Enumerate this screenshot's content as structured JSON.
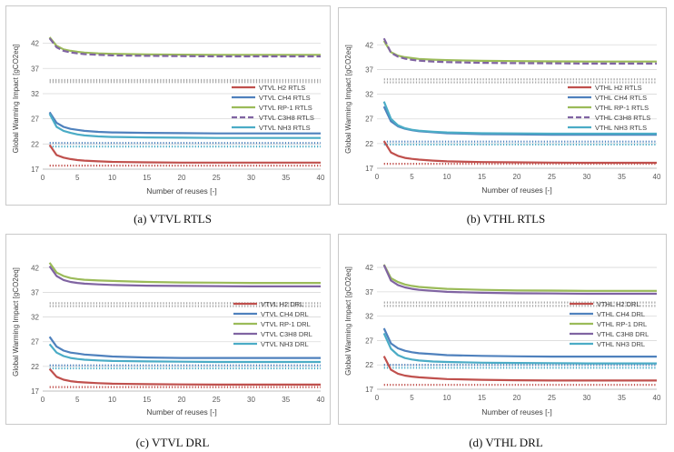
{
  "series_colors": {
    "H2": "#c0504d",
    "CH4": "#4f81bd",
    "RP-1": "#9bbb59",
    "C3H8": "#8064a2",
    "NH3": "#4bacc6",
    "H2_ref": "#c0504d",
    "CH4_ref": "#4f81bd",
    "NH3_ref": "#4bacc6",
    "top_ref": "#a6a6a6"
  },
  "chart_data": [
    {
      "type": "line",
      "caption": "(a) VTVL RTLS",
      "xlabel": "Number  of reuses [-]",
      "ylabel": "Global Warming Impact [gCO2eq]",
      "xlim": [
        0,
        40
      ],
      "ylim": [
        17,
        45
      ],
      "xticks": [
        0,
        5,
        10,
        15,
        20,
        25,
        30,
        35,
        40
      ],
      "yticks": [
        17,
        22,
        27,
        32,
        37,
        42
      ],
      "x": [
        1,
        2,
        3,
        4,
        5,
        6,
        8,
        10,
        15,
        20,
        25,
        30,
        35,
        40
      ],
      "series": [
        {
          "name": "VTVL H2 RTLS",
          "key": "H2",
          "dash": "solid",
          "values": [
            21.8,
            19.8,
            19.3,
            19.0,
            18.8,
            18.7,
            18.55,
            18.45,
            18.35,
            18.3,
            18.3,
            18.3,
            18.3,
            18.3
          ]
        },
        {
          "name": "VTVL CH4 RTLS",
          "key": "CH4",
          "dash": "solid",
          "values": [
            28.3,
            26.2,
            25.4,
            25.0,
            24.8,
            24.6,
            24.4,
            24.3,
            24.2,
            24.15,
            24.1,
            24.1,
            24.1,
            24.1
          ]
        },
        {
          "name": "VTVL RP-1 RTLS",
          "key": "RP-1",
          "dash": "solid",
          "values": [
            43.2,
            41.5,
            40.8,
            40.5,
            40.3,
            40.15,
            40.0,
            39.9,
            39.8,
            39.75,
            39.7,
            39.7,
            39.7,
            39.7
          ]
        },
        {
          "name": "VTVL C3H8 RTLS",
          "key": "C3H8",
          "dash": "dash",
          "values": [
            43.0,
            41.2,
            40.5,
            40.2,
            40.0,
            39.85,
            39.7,
            39.6,
            39.5,
            39.45,
            39.4,
            39.4,
            39.4,
            39.4
          ]
        },
        {
          "name": "VTVL NH3 RTLS",
          "key": "NH3",
          "dash": "solid",
          "values": [
            28.0,
            25.4,
            24.6,
            24.2,
            23.9,
            23.7,
            23.5,
            23.4,
            23.3,
            23.25,
            23.2,
            23.2,
            23.2,
            23.2
          ]
        }
      ],
      "references": [
        {
          "key": "top_ref",
          "value": 34.7
        },
        {
          "key": "top_ref",
          "value": 34.3
        },
        {
          "key": "CH4_ref",
          "value": 22.2
        },
        {
          "key": "NH3_ref",
          "value": 21.5
        },
        {
          "key": "H2_ref",
          "value": 17.7
        }
      ]
    },
    {
      "type": "line",
      "caption": "(b) VTHL RTLS",
      "xlabel": "Number  of reuses [-]",
      "ylabel": "Global Warming Impact [gCO2eq]",
      "xlim": [
        0,
        40
      ],
      "ylim": [
        17,
        45
      ],
      "xticks": [
        0,
        5,
        10,
        15,
        20,
        25,
        30,
        35,
        40
      ],
      "yticks": [
        17,
        22,
        27,
        32,
        37,
        42
      ],
      "x": [
        1,
        2,
        3,
        4,
        5,
        6,
        8,
        10,
        15,
        20,
        25,
        30,
        35,
        40
      ],
      "series": [
        {
          "name": "VTHL H2 RTLS",
          "key": "H2",
          "dash": "solid",
          "values": [
            22.5,
            20.2,
            19.5,
            19.1,
            18.9,
            18.75,
            18.55,
            18.4,
            18.25,
            18.2,
            18.15,
            18.1,
            18.1,
            18.1
          ]
        },
        {
          "name": "VTHL CH4 RTLS",
          "key": "CH4",
          "dash": "solid",
          "values": [
            29.5,
            26.5,
            25.5,
            25.0,
            24.7,
            24.5,
            24.3,
            24.1,
            23.9,
            23.85,
            23.8,
            23.8,
            23.8,
            23.8
          ]
        },
        {
          "name": "VTHL RP-1 RTLS",
          "key": "RP-1",
          "dash": "solid",
          "values": [
            42.8,
            40.5,
            39.8,
            39.5,
            39.3,
            39.15,
            39.0,
            38.9,
            38.75,
            38.7,
            38.65,
            38.6,
            38.6,
            38.6
          ]
        },
        {
          "name": "VTHL C3H8 RTLS",
          "key": "C3H8",
          "dash": "dash",
          "values": [
            43.3,
            40.4,
            39.6,
            39.2,
            38.95,
            38.8,
            38.6,
            38.5,
            38.35,
            38.3,
            38.25,
            38.2,
            38.2,
            38.2
          ]
        },
        {
          "name": "VTHL NH3 RTLS",
          "key": "NH3",
          "dash": "solid",
          "values": [
            30.5,
            27.0,
            25.7,
            25.1,
            24.8,
            24.6,
            24.4,
            24.25,
            24.1,
            24.05,
            24.0,
            24.0,
            24.0,
            24.0
          ]
        }
      ],
      "references": [
        {
          "key": "top_ref",
          "value": 35.0
        },
        {
          "key": "top_ref",
          "value": 34.4
        },
        {
          "key": "CH4_ref",
          "value": 22.4
        },
        {
          "key": "NH3_ref",
          "value": 21.8
        },
        {
          "key": "H2_ref",
          "value": 17.9
        }
      ]
    },
    {
      "type": "line",
      "caption": "(c) VTVL DRL",
      "xlabel": "Number of reuses [-]",
      "ylabel": "Global Warming Impact [gCO2eq]",
      "xlim": [
        0,
        40
      ],
      "ylim": [
        17,
        45
      ],
      "xticks": [
        0,
        5,
        10,
        15,
        20,
        25,
        30,
        35,
        40
      ],
      "yticks": [
        17,
        22,
        27,
        32,
        37,
        42
      ],
      "x": [
        1,
        2,
        3,
        4,
        5,
        6,
        8,
        10,
        15,
        20,
        25,
        30,
        35,
        40
      ],
      "series": [
        {
          "name": "VTVL H2 DRL",
          "key": "H2",
          "dash": "solid",
          "values": [
            21.5,
            19.9,
            19.3,
            19.0,
            18.85,
            18.75,
            18.6,
            18.5,
            18.4,
            18.35,
            18.3,
            18.3,
            18.3,
            18.3
          ]
        },
        {
          "name": "VTVL CH4 DRL",
          "key": "CH4",
          "dash": "solid",
          "values": [
            28.0,
            26.0,
            25.2,
            24.8,
            24.6,
            24.4,
            24.2,
            24.0,
            23.8,
            23.7,
            23.7,
            23.7,
            23.7,
            23.7
          ]
        },
        {
          "name": "VTVL RP-1 DRL",
          "key": "RP-1",
          "dash": "solid",
          "values": [
            43.0,
            41.0,
            40.3,
            39.9,
            39.7,
            39.55,
            39.4,
            39.3,
            39.1,
            39.0,
            38.95,
            38.9,
            38.9,
            38.9
          ]
        },
        {
          "name": "VTVL C3H8 DRL",
          "key": "C3H8",
          "dash": "solid",
          "values": [
            42.3,
            40.3,
            39.5,
            39.1,
            38.9,
            38.75,
            38.6,
            38.5,
            38.35,
            38.3,
            38.25,
            38.2,
            38.2,
            38.2
          ]
        },
        {
          "name": "VTVL NH3 DRL",
          "key": "NH3",
          "dash": "solid",
          "values": [
            26.5,
            24.8,
            24.1,
            23.7,
            23.5,
            23.35,
            23.2,
            23.1,
            23.0,
            22.95,
            22.9,
            22.9,
            22.9,
            22.9
          ]
        }
      ],
      "references": [
        {
          "key": "top_ref",
          "value": 34.8
        },
        {
          "key": "top_ref",
          "value": 34.2
        },
        {
          "key": "CH4_ref",
          "value": 22.2
        },
        {
          "key": "NH3_ref",
          "value": 21.6
        },
        {
          "key": "H2_ref",
          "value": 17.8
        }
      ]
    },
    {
      "type": "line",
      "caption": "(d) VTHL DRL",
      "xlabel": "Number of reuses [-]",
      "ylabel": "Global Warming Impact [gCO2eq]",
      "xlim": [
        0,
        40
      ],
      "ylim": [
        17,
        45
      ],
      "xticks": [
        0,
        5,
        10,
        15,
        20,
        25,
        30,
        35,
        40
      ],
      "yticks": [
        17,
        22,
        27,
        32,
        37,
        42
      ],
      "x": [
        1,
        2,
        3,
        4,
        5,
        6,
        8,
        10,
        15,
        20,
        25,
        30,
        35,
        40
      ],
      "series": [
        {
          "name": "VTHL H2 DRL",
          "key": "H2",
          "dash": "solid",
          "values": [
            23.8,
            21.0,
            20.2,
            19.8,
            19.6,
            19.45,
            19.25,
            19.1,
            18.95,
            18.85,
            18.8,
            18.8,
            18.8,
            18.8
          ]
        },
        {
          "name": "VTHL CH4 DRL",
          "key": "CH4",
          "dash": "solid",
          "values": [
            29.5,
            26.4,
            25.4,
            24.9,
            24.6,
            24.4,
            24.2,
            24.0,
            23.85,
            23.75,
            23.7,
            23.7,
            23.7,
            23.7
          ]
        },
        {
          "name": "VTHL RP-1 DRL",
          "key": "RP-1",
          "dash": "solid",
          "values": [
            42.6,
            39.8,
            39.0,
            38.5,
            38.2,
            38.0,
            37.8,
            37.6,
            37.4,
            37.3,
            37.25,
            37.2,
            37.2,
            37.2
          ]
        },
        {
          "name": "VTHL C3H8 DRL",
          "key": "C3H8",
          "dash": "solid",
          "values": [
            42.5,
            39.3,
            38.4,
            37.9,
            37.6,
            37.4,
            37.2,
            37.0,
            36.8,
            36.7,
            36.65,
            36.6,
            36.6,
            36.6
          ]
        },
        {
          "name": "VTHL NH3 DRL",
          "key": "NH3",
          "dash": "solid",
          "values": [
            28.5,
            25.3,
            24.0,
            23.4,
            23.1,
            22.9,
            22.7,
            22.6,
            22.45,
            22.4,
            22.35,
            22.3,
            22.3,
            22.3
          ]
        }
      ],
      "references": [
        {
          "key": "top_ref",
          "value": 34.8
        },
        {
          "key": "top_ref",
          "value": 34.1
        },
        {
          "key": "CH4_ref",
          "value": 22.0
        },
        {
          "key": "NH3_ref",
          "value": 21.4
        },
        {
          "key": "H2_ref",
          "value": 17.9
        }
      ]
    }
  ]
}
